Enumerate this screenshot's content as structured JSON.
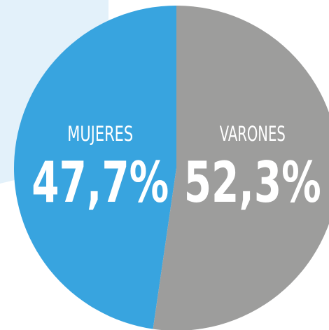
{
  "chart_data": {
    "type": "pie",
    "categories": [
      "MUJERES",
      "VARONES"
    ],
    "values": [
      47.7,
      52.3
    ],
    "value_labels": [
      "47,7%",
      "52,3%"
    ],
    "colors": [
      "#38a4df",
      "#9d9d9c"
    ]
  }
}
